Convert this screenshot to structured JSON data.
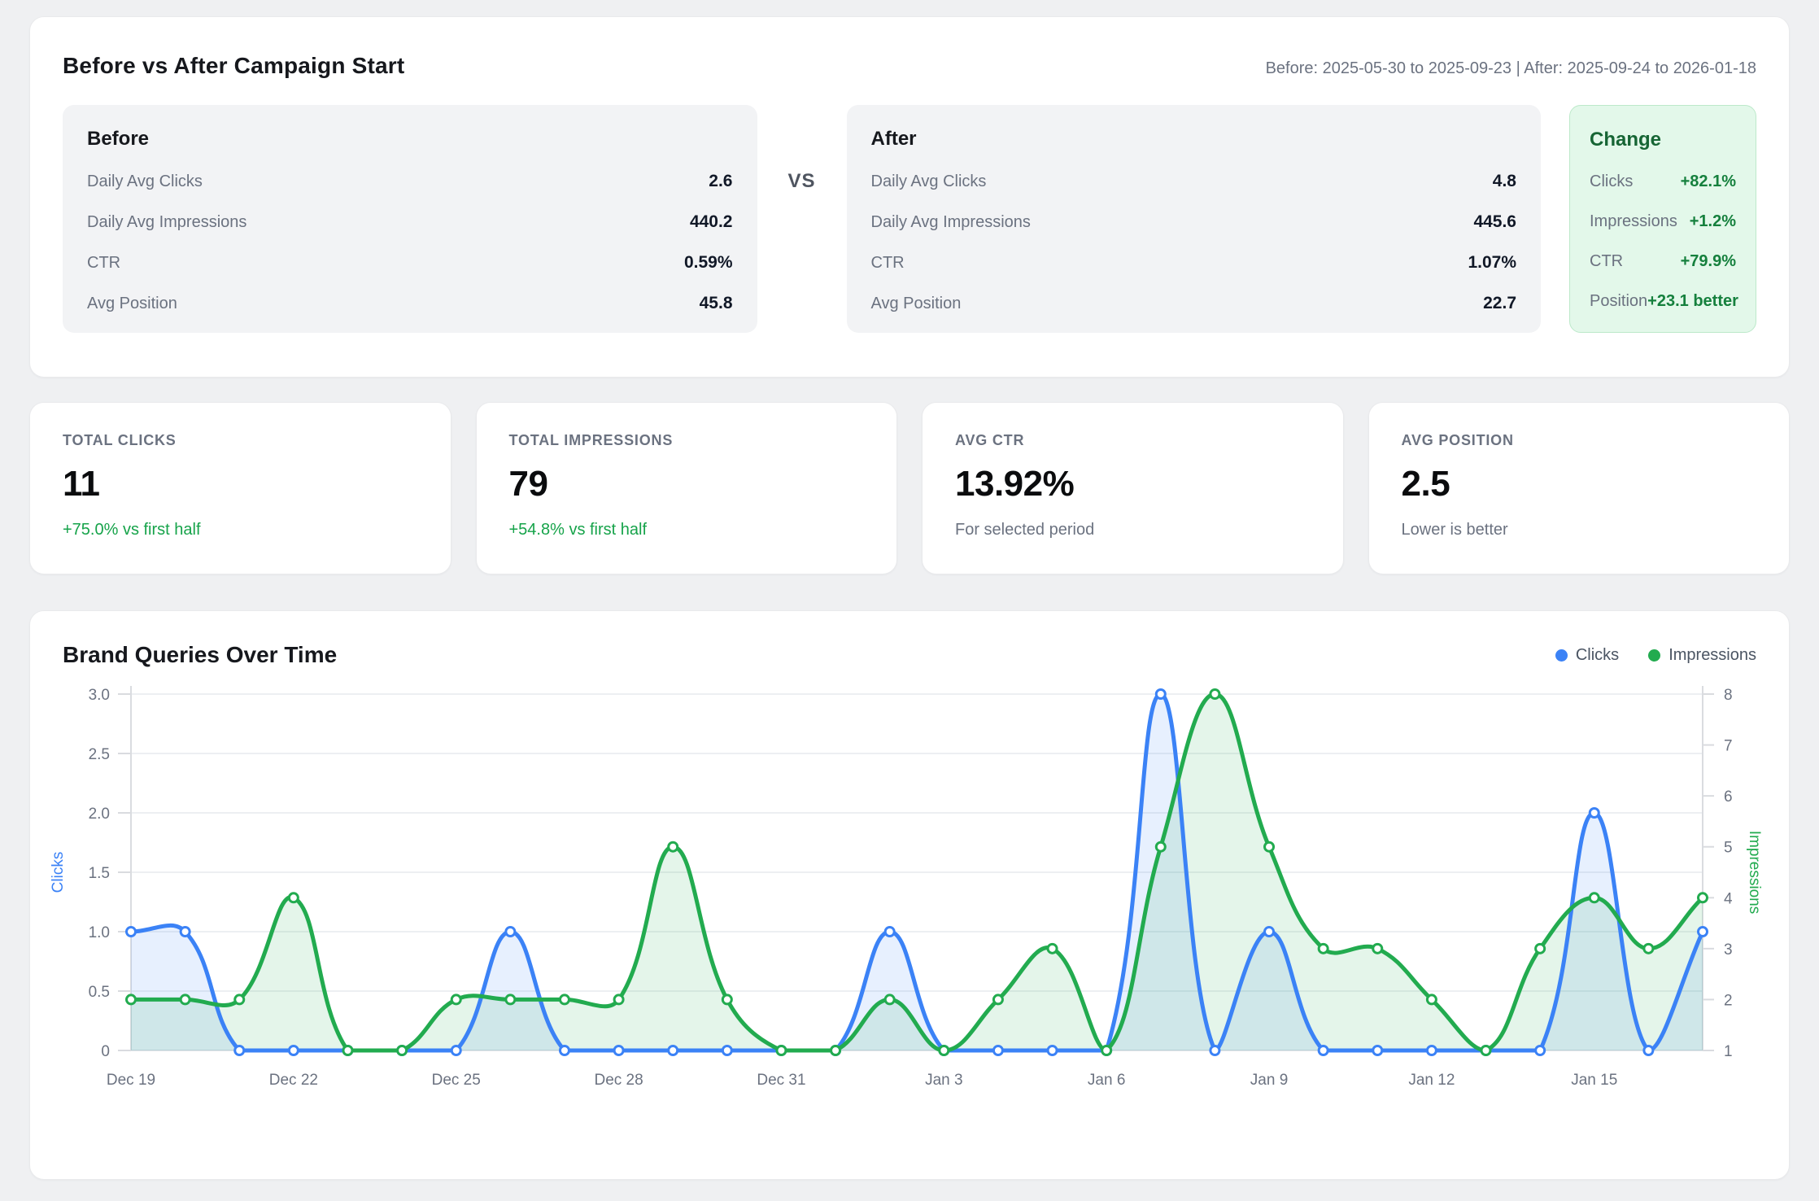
{
  "compare": {
    "title": "Before vs After Campaign Start",
    "date_range": "Before: 2025-05-30 to 2025-09-23 | After: 2025-09-24 to 2026-01-18",
    "vs_label": "VS",
    "before": {
      "title": "Before",
      "rows": [
        {
          "label": "Daily Avg Clicks",
          "value": "2.6"
        },
        {
          "label": "Daily Avg Impressions",
          "value": "440.2"
        },
        {
          "label": "CTR",
          "value": "0.59%"
        },
        {
          "label": "Avg Position",
          "value": "45.8"
        }
      ]
    },
    "after": {
      "title": "After",
      "rows": [
        {
          "label": "Daily Avg Clicks",
          "value": "4.8"
        },
        {
          "label": "Daily Avg Impressions",
          "value": "445.6"
        },
        {
          "label": "CTR",
          "value": "1.07%"
        },
        {
          "label": "Avg Position",
          "value": "22.7"
        }
      ]
    },
    "change": {
      "title": "Change",
      "accent_color": "#15803d",
      "background_color": "#e3f8ea",
      "rows": [
        {
          "label": "Clicks",
          "value": "+82.1%"
        },
        {
          "label": "Impressions",
          "value": "+1.2%"
        },
        {
          "label": "CTR",
          "value": "+79.9%"
        },
        {
          "label": "Position",
          "value": "+23.1 better"
        }
      ]
    }
  },
  "stats": {
    "cards": [
      {
        "label": "TOTAL CLICKS",
        "value": "11",
        "note": "+75.0% vs first half",
        "note_style": "green"
      },
      {
        "label": "TOTAL IMPRESSIONS",
        "value": "79",
        "note": "+54.8% vs first half",
        "note_style": "green"
      },
      {
        "label": "AVG CTR",
        "value": "13.92%",
        "note": "For selected period",
        "note_style": "gray"
      },
      {
        "label": "AVG POSITION",
        "value": "2.5",
        "note": "Lower is better",
        "note_style": "gray"
      }
    ]
  },
  "chart": {
    "title": "Brand Queries Over Time",
    "legend": [
      {
        "label": "Clicks",
        "color": "#3b82f6"
      },
      {
        "label": "Impressions",
        "color": "#22ab4f"
      }
    ]
  },
  "chart_data": {
    "type": "line",
    "title": "Brand Queries Over Time",
    "x": [
      "Dec 19",
      "Dec 20",
      "Dec 21",
      "Dec 22",
      "Dec 23",
      "Dec 24",
      "Dec 25",
      "Dec 26",
      "Dec 27",
      "Dec 28",
      "Dec 29",
      "Dec 30",
      "Dec 31",
      "Jan 1",
      "Jan 2",
      "Jan 3",
      "Jan 4",
      "Jan 5",
      "Jan 6",
      "Jan 7",
      "Jan 8",
      "Jan 9",
      "Jan 10",
      "Jan 11",
      "Jan 12",
      "Jan 13",
      "Jan 14",
      "Jan 15",
      "Jan 16",
      "Jan 17"
    ],
    "x_tick_every": 3,
    "grid": true,
    "legend_position": "top-right",
    "series": [
      {
        "name": "Clicks",
        "axis": "left",
        "color": "#3b82f6",
        "fill": "rgba(59,130,246,0.12)",
        "values": [
          1,
          1,
          0,
          0,
          0,
          0,
          0,
          1,
          0,
          0,
          0,
          0,
          0,
          0,
          1,
          0,
          0,
          0,
          0,
          3,
          0,
          1,
          0,
          0,
          0,
          0,
          0,
          2,
          0,
          1
        ]
      },
      {
        "name": "Impressions",
        "axis": "right",
        "color": "#22ab4f",
        "fill": "rgba(34,171,79,0.12)",
        "values": [
          2,
          2,
          2,
          4,
          1,
          1,
          2,
          2,
          2,
          2,
          5,
          2,
          1,
          1,
          2,
          1,
          2,
          3,
          1,
          5,
          8,
          5,
          3,
          3,
          2,
          1,
          3,
          4,
          3,
          4
        ]
      }
    ],
    "left_axis": {
      "title": "Clicks",
      "min": 0,
      "max": 3,
      "ticks": [
        0,
        0.5,
        1,
        1.5,
        2,
        2.5,
        3
      ]
    },
    "right_axis": {
      "title": "Impressions",
      "min": 1,
      "max": 8,
      "ticks": [
        1,
        2,
        3,
        4,
        5,
        6,
        7,
        8
      ]
    }
  }
}
